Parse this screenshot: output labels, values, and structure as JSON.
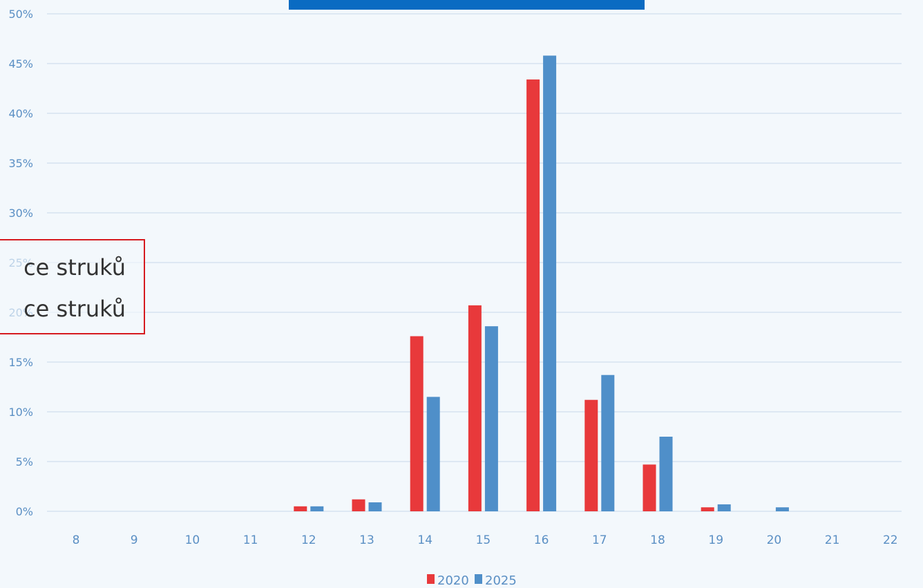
{
  "header": {
    "title": ""
  },
  "callout": {
    "line1": "ce struků",
    "line2": "ce struků"
  },
  "colors": {
    "series_2020": "#e8393b",
    "series_2025": "#4f8fc9",
    "grid": "#dde8f3",
    "tick": "#5a8fc4",
    "background": "#f3f8fc"
  },
  "chart_data": {
    "type": "bar",
    "title": "",
    "xlabel": "",
    "ylabel": "",
    "categories": [
      "8",
      "9",
      "10",
      "11",
      "12",
      "13",
      "14",
      "15",
      "16",
      "17",
      "18",
      "19",
      "20",
      "21",
      "22"
    ],
    "series": [
      {
        "name": "2020",
        "values": [
          0,
          0,
          0,
          0,
          0.5,
          1.2,
          17.6,
          20.7,
          43.4,
          11.2,
          4.7,
          0.4,
          0,
          0,
          0
        ]
      },
      {
        "name": "2025",
        "values": [
          0,
          0,
          0,
          0,
          0.5,
          0.9,
          11.5,
          18.6,
          45.8,
          13.7,
          7.5,
          0.7,
          0.4,
          0,
          0
        ]
      }
    ],
    "yticks": [
      "0%",
      "5%",
      "10%",
      "15%",
      "20%",
      "25%",
      "30%",
      "35%",
      "40%",
      "45%",
      "50%"
    ],
    "ylim": [
      0,
      50
    ],
    "grid": true,
    "legend_position": "bottom"
  }
}
